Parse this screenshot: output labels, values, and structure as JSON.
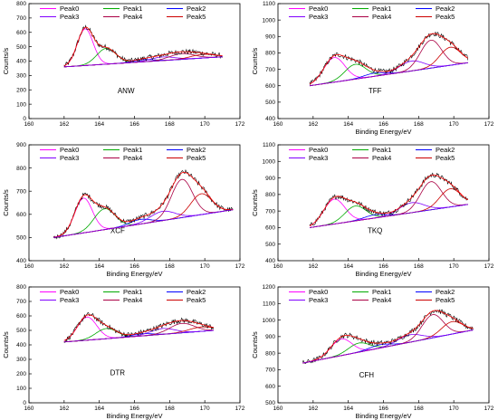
{
  "chart_data": [
    {
      "type": "line",
      "sample": "ANW",
      "xlabel": "",
      "ylabel": "Counts/s",
      "xlim": [
        160,
        172
      ],
      "ylim": [
        0,
        800
      ],
      "xticks": [
        "160",
        "162",
        "164",
        "166",
        "168",
        "170",
        "172"
      ],
      "yticks": [
        "0",
        "100",
        "200",
        "300",
        "400",
        "500",
        "600",
        "700",
        "800"
      ],
      "legend": [
        "Peak0",
        "Peak1",
        "Peak2",
        "Peak3",
        "Peak4",
        "Peak5"
      ],
      "legend_position": "top",
      "x_range": [
        162,
        171
      ],
      "baseline_start": 360,
      "baseline_end": 430,
      "peaks": [
        {
          "name": "Peak0",
          "center": 163.2,
          "height": 255,
          "width": 0.45
        },
        {
          "name": "Peak1",
          "center": 164.4,
          "height": 110,
          "width": 0.55
        },
        {
          "name": "Peak2",
          "center": 166.5,
          "height": 15,
          "width": 0.6
        },
        {
          "name": "Peak3",
          "center": 167.6,
          "height": 25,
          "width": 0.7
        },
        {
          "name": "Peak4",
          "center": 168.7,
          "height": 40,
          "width": 0.7
        },
        {
          "name": "Peak5",
          "center": 169.9,
          "height": 25,
          "width": 0.7
        }
      ]
    },
    {
      "type": "line",
      "sample": "TFF",
      "xlabel": "Binding Energy/eV",
      "ylabel": "Counts/s",
      "xlim": [
        160,
        172
      ],
      "ylim": [
        400,
        1100
      ],
      "xticks": [
        "160",
        "162",
        "164",
        "166",
        "168",
        "170",
        "172"
      ],
      "yticks": [
        "400",
        "500",
        "600",
        "700",
        "800",
        "900",
        "1000",
        "1100"
      ],
      "legend": [
        "Peak0",
        "Peak1",
        "Peak2",
        "Peak3",
        "Peak4",
        "Peak5"
      ],
      "legend_position": "top",
      "x_range": [
        161.8,
        170.8
      ],
      "baseline_start": 600,
      "baseline_end": 740,
      "peaks": [
        {
          "name": "Peak0",
          "center": 163.2,
          "height": 150,
          "width": 0.6
        },
        {
          "name": "Peak1",
          "center": 164.4,
          "height": 90,
          "width": 0.6
        },
        {
          "name": "Peak2",
          "center": 165.5,
          "height": 20,
          "width": 0.6
        },
        {
          "name": "Peak3",
          "center": 167.6,
          "height": 60,
          "width": 0.7
        },
        {
          "name": "Peak4",
          "center": 168.7,
          "height": 170,
          "width": 0.6
        },
        {
          "name": "Peak5",
          "center": 169.8,
          "height": 110,
          "width": 0.6
        }
      ]
    },
    {
      "type": "line",
      "sample": "XCF",
      "xlabel": "Binding Energy/eV",
      "ylabel": "Counts/s",
      "xlim": [
        160,
        172
      ],
      "ylim": [
        400,
        900
      ],
      "xticks": [
        "160",
        "162",
        "164",
        "166",
        "168",
        "170",
        "172"
      ],
      "yticks": [
        "400",
        "500",
        "600",
        "700",
        "800",
        "900"
      ],
      "legend": [
        "Peak0",
        "Peak1",
        "Peak2",
        "Peak3",
        "Peak4",
        "Peak5"
      ],
      "legend_position": "top",
      "x_range": [
        161.4,
        171.6
      ],
      "baseline_start": 500,
      "baseline_end": 620,
      "peaks": [
        {
          "name": "Peak0",
          "center": 163.1,
          "height": 150,
          "width": 0.5
        },
        {
          "name": "Peak1",
          "center": 164.3,
          "height": 90,
          "width": 0.6
        },
        {
          "name": "Peak2",
          "center": 166.3,
          "height": 20,
          "width": 0.6
        },
        {
          "name": "Peak3",
          "center": 167.6,
          "height": 40,
          "width": 0.7
        },
        {
          "name": "Peak4",
          "center": 168.7,
          "height": 165,
          "width": 0.6
        },
        {
          "name": "Peak5",
          "center": 169.8,
          "height": 90,
          "width": 0.6
        }
      ]
    },
    {
      "type": "line",
      "sample": "TKQ",
      "xlabel": "Binding Energy/eV",
      "ylabel": "Counts/s",
      "xlim": [
        160,
        172
      ],
      "ylim": [
        400,
        1100
      ],
      "xticks": [
        "160",
        "162",
        "164",
        "166",
        "168",
        "170",
        "172"
      ],
      "yticks": [
        "400",
        "500",
        "600",
        "700",
        "800",
        "900",
        "1000",
        "1100"
      ],
      "legend": [
        "Peak0",
        "Peak1",
        "Peak2",
        "Peak3",
        "Peak4",
        "Peak5"
      ],
      "legend_position": "top",
      "x_range": [
        161.8,
        170.8
      ],
      "baseline_start": 600,
      "baseline_end": 740,
      "peaks": [
        {
          "name": "Peak0",
          "center": 163.2,
          "height": 150,
          "width": 0.6
        },
        {
          "name": "Peak1",
          "center": 164.4,
          "height": 90,
          "width": 0.6
        },
        {
          "name": "Peak2",
          "center": 165.5,
          "height": 20,
          "width": 0.6
        },
        {
          "name": "Peak3",
          "center": 167.6,
          "height": 60,
          "width": 0.7
        },
        {
          "name": "Peak4",
          "center": 168.7,
          "height": 170,
          "width": 0.6
        },
        {
          "name": "Peak5",
          "center": 169.8,
          "height": 110,
          "width": 0.6
        }
      ]
    },
    {
      "type": "line",
      "sample": "DTR",
      "xlabel": "Binding Energy/eV",
      "ylabel": "Counts/s",
      "xlim": [
        160,
        172
      ],
      "ylim": [
        0,
        800
      ],
      "xticks": [
        "160",
        "162",
        "164",
        "166",
        "168",
        "170",
        "172"
      ],
      "yticks": [
        "0",
        "100",
        "200",
        "300",
        "400",
        "500",
        "600",
        "700",
        "800"
      ],
      "legend": [
        "Peak0",
        "Peak1",
        "Peak2",
        "Peak3",
        "Peak4",
        "Peak5"
      ],
      "legend_position": "top",
      "x_range": [
        162,
        170.5
      ],
      "baseline_start": 420,
      "baseline_end": 500,
      "peaks": [
        {
          "name": "Peak0",
          "center": 163.3,
          "height": 160,
          "width": 0.55
        },
        {
          "name": "Peak1",
          "center": 164.4,
          "height": 70,
          "width": 0.6
        },
        {
          "name": "Peak2",
          "center": 166.4,
          "height": 15,
          "width": 0.6
        },
        {
          "name": "Peak3",
          "center": 167.6,
          "height": 40,
          "width": 0.7
        },
        {
          "name": "Peak4",
          "center": 168.7,
          "height": 65,
          "width": 0.7
        },
        {
          "name": "Peak5",
          "center": 169.8,
          "height": 30,
          "width": 0.7
        }
      ]
    },
    {
      "type": "line",
      "sample": "CFH",
      "xlabel": "Binding Energy/eV",
      "ylabel": "Counts/s",
      "xlim": [
        160,
        172
      ],
      "ylim": [
        500,
        1200
      ],
      "xticks": [
        "160",
        "162",
        "164",
        "166",
        "168",
        "170",
        "172"
      ],
      "yticks": [
        "500",
        "600",
        "700",
        "800",
        "900",
        "1000",
        "1100",
        "1200"
      ],
      "legend": [
        "Peak0",
        "Peak1",
        "Peak2",
        "Peak3",
        "Peak4",
        "Peak5"
      ],
      "legend_position": "top",
      "x_range": [
        161.4,
        171.1
      ],
      "baseline_start": 740,
      "baseline_end": 940,
      "peaks": [
        {
          "name": "Peak0",
          "center": 163.6,
          "height": 100,
          "width": 0.6
        },
        {
          "name": "Peak1",
          "center": 164.6,
          "height": 55,
          "width": 0.6
        },
        {
          "name": "Peak2",
          "center": 165.8,
          "height": 20,
          "width": 0.6
        },
        {
          "name": "Peak3",
          "center": 167.5,
          "height": 45,
          "width": 0.7
        },
        {
          "name": "Peak4",
          "center": 168.8,
          "height": 140,
          "width": 0.6
        },
        {
          "name": "Peak5",
          "center": 169.9,
          "height": 75,
          "width": 0.6
        }
      ]
    }
  ],
  "colors": {
    "Peak0": "#ff00ff",
    "Peak1": "#00aa00",
    "Peak2": "#0000ff",
    "Peak3": "#8000ff",
    "Peak4": "#aa0044",
    "Peak5": "#cc0000",
    "data": "#000000",
    "envelope": "#ff0000"
  }
}
